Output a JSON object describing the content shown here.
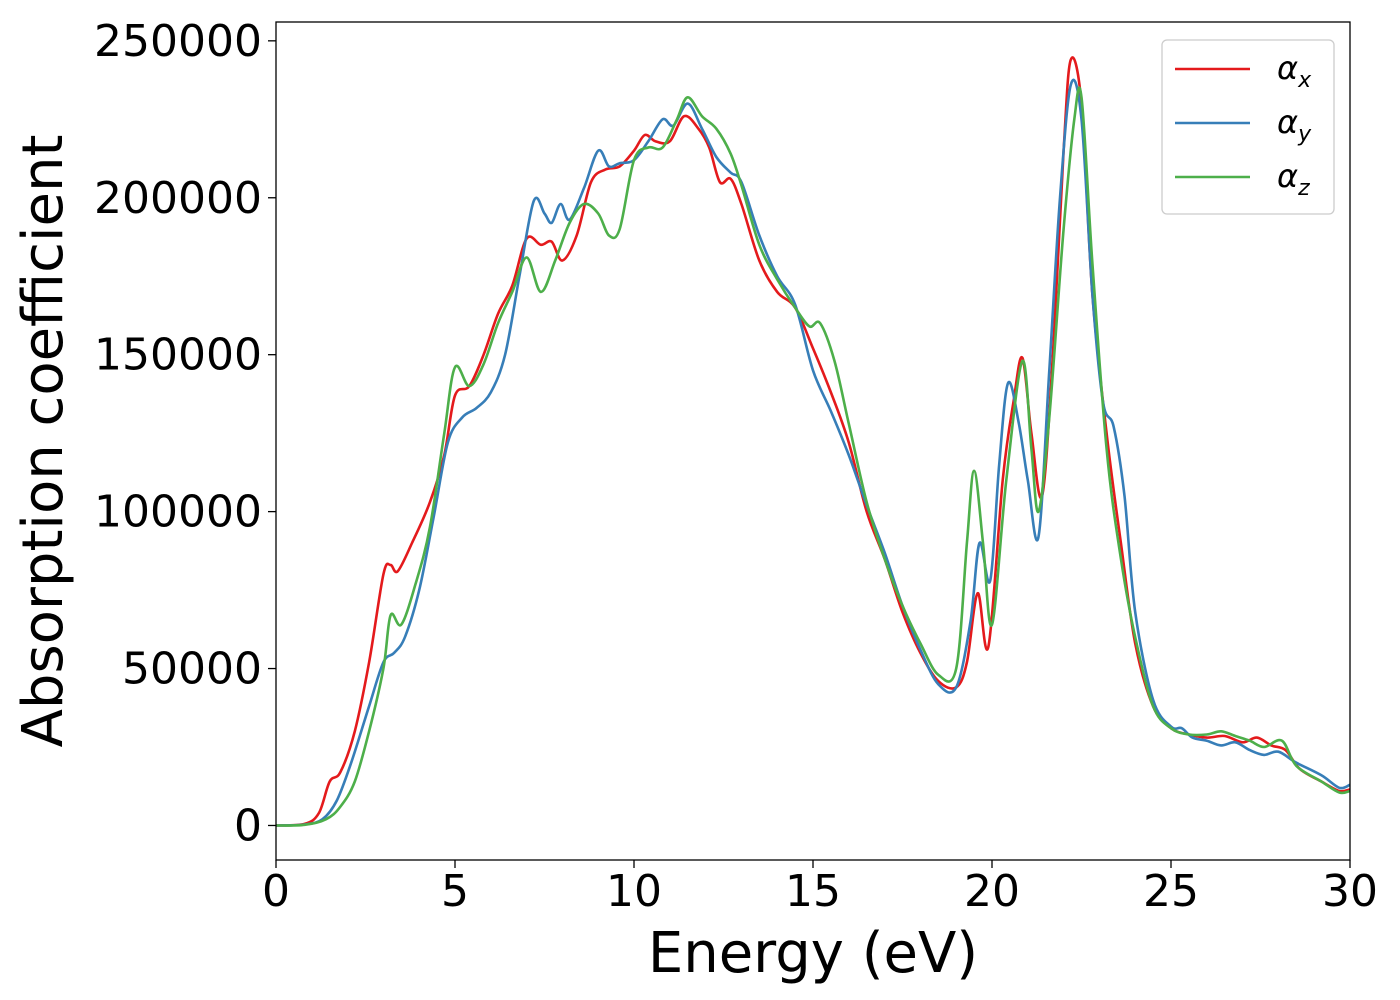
{
  "chart_data": {
    "type": "line",
    "title": "",
    "xlabel": "Energy (eV)",
    "ylabel": "Absorption coefficient",
    "xlim": [
      0,
      30
    ],
    "ylim": [
      -11000,
      256000
    ],
    "grid": false,
    "legend_position": "top-right",
    "x_ticks": [
      "0",
      "5",
      "10",
      "15",
      "20",
      "25",
      "30"
    ],
    "y_ticks": [
      "0",
      "50000",
      "100000",
      "150000",
      "200000",
      "250000"
    ],
    "series": [
      {
        "name": "α",
        "subscript": "x",
        "color": "#e41a1c",
        "points": [
          [
            0,
            0
          ],
          [
            0.8,
            500
          ],
          [
            1.2,
            4000
          ],
          [
            1.5,
            14000
          ],
          [
            1.8,
            17000
          ],
          [
            2.2,
            30000
          ],
          [
            2.6,
            52000
          ],
          [
            3.0,
            80000
          ],
          [
            3.2,
            83000
          ],
          [
            3.4,
            81000
          ],
          [
            3.8,
            90000
          ],
          [
            4.3,
            103000
          ],
          [
            4.7,
            118000
          ],
          [
            5.0,
            137000
          ],
          [
            5.4,
            140000
          ],
          [
            5.8,
            150000
          ],
          [
            6.2,
            163000
          ],
          [
            6.6,
            172000
          ],
          [
            7.0,
            187000
          ],
          [
            7.4,
            185000
          ],
          [
            7.7,
            186000
          ],
          [
            8.0,
            180000
          ],
          [
            8.4,
            188000
          ],
          [
            8.8,
            205000
          ],
          [
            9.2,
            209000
          ],
          [
            9.6,
            210000
          ],
          [
            10.0,
            215000
          ],
          [
            10.3,
            220000
          ],
          [
            10.6,
            218000
          ],
          [
            11.0,
            218000
          ],
          [
            11.4,
            226000
          ],
          [
            11.8,
            222000
          ],
          [
            12.1,
            216000
          ],
          [
            12.4,
            205000
          ],
          [
            12.7,
            206000
          ],
          [
            13.0,
            198000
          ],
          [
            13.5,
            180000
          ],
          [
            14.0,
            170000
          ],
          [
            14.5,
            165000
          ],
          [
            15.0,
            152000
          ],
          [
            15.5,
            138000
          ],
          [
            16.0,
            122000
          ],
          [
            16.5,
            100000
          ],
          [
            17.0,
            85000
          ],
          [
            17.5,
            68000
          ],
          [
            18.0,
            55000
          ],
          [
            18.5,
            46000
          ],
          [
            19.0,
            44000
          ],
          [
            19.3,
            52000
          ],
          [
            19.6,
            74000
          ],
          [
            19.9,
            57000
          ],
          [
            20.3,
            110000
          ],
          [
            20.6,
            135000
          ],
          [
            20.85,
            149000
          ],
          [
            21.1,
            125000
          ],
          [
            21.4,
            105000
          ],
          [
            21.7,
            150000
          ],
          [
            22.0,
            215000
          ],
          [
            22.2,
            244000
          ],
          [
            22.5,
            230000
          ],
          [
            22.8,
            170000
          ],
          [
            23.2,
            125000
          ],
          [
            23.6,
            90000
          ],
          [
            24.0,
            58000
          ],
          [
            24.5,
            38000
          ],
          [
            25.0,
            31000
          ],
          [
            25.5,
            29000
          ],
          [
            26.0,
            28000
          ],
          [
            26.5,
            28500
          ],
          [
            27.0,
            26500
          ],
          [
            27.4,
            28000
          ],
          [
            27.8,
            25500
          ],
          [
            28.2,
            24000
          ],
          [
            28.6,
            18000
          ],
          [
            29.2,
            14000
          ],
          [
            29.7,
            11000
          ],
          [
            30,
            11500
          ]
        ]
      },
      {
        "name": "α",
        "subscript": "y",
        "color": "#377eb8",
        "points": [
          [
            0,
            0
          ],
          [
            0.8,
            300
          ],
          [
            1.3,
            2000
          ],
          [
            1.7,
            8000
          ],
          [
            2.1,
            20000
          ],
          [
            2.6,
            38000
          ],
          [
            3.0,
            52000
          ],
          [
            3.3,
            55000
          ],
          [
            3.6,
            60000
          ],
          [
            4.0,
            75000
          ],
          [
            4.4,
            98000
          ],
          [
            4.8,
            122000
          ],
          [
            5.2,
            130000
          ],
          [
            5.6,
            133000
          ],
          [
            6.0,
            138000
          ],
          [
            6.4,
            150000
          ],
          [
            6.8,
            175000
          ],
          [
            7.2,
            199000
          ],
          [
            7.5,
            195000
          ],
          [
            7.7,
            192000
          ],
          [
            7.95,
            198000
          ],
          [
            8.2,
            193000
          ],
          [
            8.6,
            203000
          ],
          [
            9.0,
            215000
          ],
          [
            9.3,
            210000
          ],
          [
            9.6,
            211000
          ],
          [
            10.0,
            212000
          ],
          [
            10.4,
            218000
          ],
          [
            10.8,
            225000
          ],
          [
            11.1,
            223000
          ],
          [
            11.5,
            230000
          ],
          [
            11.9,
            222000
          ],
          [
            12.3,
            213000
          ],
          [
            12.7,
            208000
          ],
          [
            13.0,
            205000
          ],
          [
            13.5,
            188000
          ],
          [
            14.0,
            175000
          ],
          [
            14.5,
            166000
          ],
          [
            15.0,
            145000
          ],
          [
            15.5,
            132000
          ],
          [
            16.0,
            118000
          ],
          [
            16.5,
            102000
          ],
          [
            17.0,
            87000
          ],
          [
            17.5,
            70000
          ],
          [
            18.0,
            56000
          ],
          [
            18.5,
            45000
          ],
          [
            19.0,
            44000
          ],
          [
            19.4,
            65000
          ],
          [
            19.65,
            90000
          ],
          [
            19.95,
            78000
          ],
          [
            20.2,
            115000
          ],
          [
            20.45,
            141000
          ],
          [
            20.75,
            128000
          ],
          [
            21.0,
            110000
          ],
          [
            21.3,
            92000
          ],
          [
            21.6,
            145000
          ],
          [
            21.9,
            200000
          ],
          [
            22.2,
            236000
          ],
          [
            22.5,
            225000
          ],
          [
            22.8,
            170000
          ],
          [
            23.1,
            135000
          ],
          [
            23.4,
            127000
          ],
          [
            23.7,
            105000
          ],
          [
            24.0,
            68000
          ],
          [
            24.5,
            40000
          ],
          [
            25.0,
            31500
          ],
          [
            25.3,
            31000
          ],
          [
            25.6,
            28000
          ],
          [
            26.0,
            27000
          ],
          [
            26.4,
            25500
          ],
          [
            26.8,
            26500
          ],
          [
            27.2,
            24000
          ],
          [
            27.6,
            22500
          ],
          [
            28.0,
            23500
          ],
          [
            28.5,
            20000
          ],
          [
            29.2,
            16000
          ],
          [
            29.7,
            12000
          ],
          [
            30,
            13000
          ]
        ]
      },
      {
        "name": "α",
        "subscript": "z",
        "color": "#4daf4a",
        "points": [
          [
            0,
            0
          ],
          [
            0.8,
            200
          ],
          [
            1.4,
            2000
          ],
          [
            1.8,
            6000
          ],
          [
            2.2,
            14000
          ],
          [
            2.6,
            30000
          ],
          [
            3.0,
            50000
          ],
          [
            3.2,
            67000
          ],
          [
            3.5,
            64000
          ],
          [
            3.9,
            77000
          ],
          [
            4.3,
            95000
          ],
          [
            4.7,
            125000
          ],
          [
            5.0,
            146000
          ],
          [
            5.4,
            140000
          ],
          [
            5.8,
            147000
          ],
          [
            6.2,
            160000
          ],
          [
            6.6,
            170000
          ],
          [
            7.0,
            181000
          ],
          [
            7.4,
            170000
          ],
          [
            7.8,
            180000
          ],
          [
            8.2,
            192000
          ],
          [
            8.6,
            198000
          ],
          [
            9.0,
            195000
          ],
          [
            9.3,
            188000
          ],
          [
            9.6,
            190000
          ],
          [
            10.0,
            212000
          ],
          [
            10.4,
            216000
          ],
          [
            10.8,
            216000
          ],
          [
            11.2,
            225000
          ],
          [
            11.5,
            232000
          ],
          [
            11.9,
            226000
          ],
          [
            12.3,
            222000
          ],
          [
            12.7,
            214000
          ],
          [
            13.0,
            204000
          ],
          [
            13.5,
            185000
          ],
          [
            14.0,
            174000
          ],
          [
            14.5,
            165000
          ],
          [
            14.9,
            159000
          ],
          [
            15.2,
            160000
          ],
          [
            15.6,
            148000
          ],
          [
            16.0,
            128000
          ],
          [
            16.5,
            103000
          ],
          [
            17.0,
            85000
          ],
          [
            17.5,
            70000
          ],
          [
            18.0,
            58000
          ],
          [
            18.5,
            48000
          ],
          [
            19.0,
            50000
          ],
          [
            19.3,
            90000
          ],
          [
            19.5,
            113000
          ],
          [
            19.75,
            90000
          ],
          [
            20.0,
            64000
          ],
          [
            20.4,
            110000
          ],
          [
            20.85,
            148000
          ],
          [
            21.1,
            120000
          ],
          [
            21.3,
            100000
          ],
          [
            21.6,
            130000
          ],
          [
            22.0,
            190000
          ],
          [
            22.3,
            225000
          ],
          [
            22.5,
            232000
          ],
          [
            22.8,
            180000
          ],
          [
            23.2,
            120000
          ],
          [
            23.6,
            85000
          ],
          [
            24.0,
            60000
          ],
          [
            24.5,
            38000
          ],
          [
            25.0,
            31000
          ],
          [
            25.5,
            29000
          ],
          [
            26.0,
            29000
          ],
          [
            26.4,
            30000
          ],
          [
            26.8,
            28500
          ],
          [
            27.2,
            27000
          ],
          [
            27.6,
            25000
          ],
          [
            28.1,
            27000
          ],
          [
            28.5,
            19000
          ],
          [
            29.2,
            14000
          ],
          [
            29.7,
            10500
          ],
          [
            30,
            11000
          ]
        ]
      }
    ]
  }
}
